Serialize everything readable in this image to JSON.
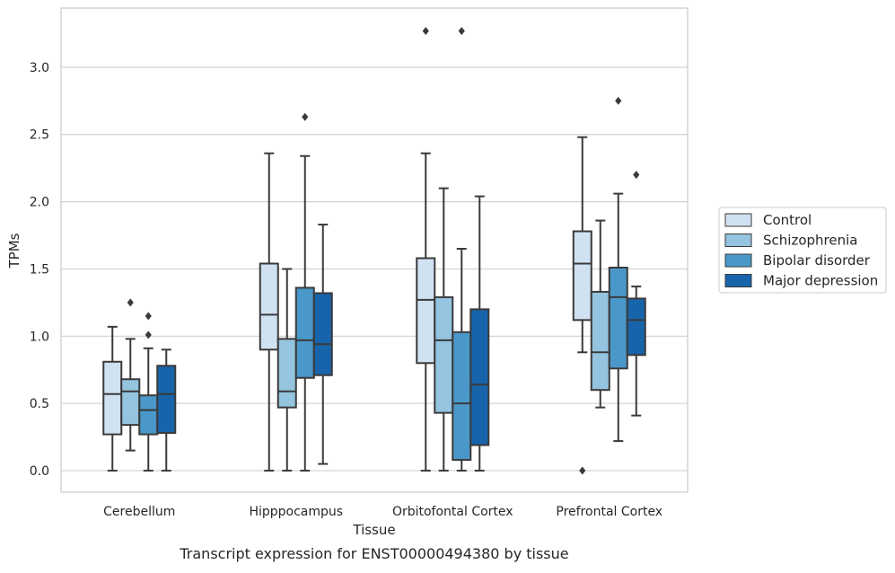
{
  "chart_data": {
    "type": "boxplot",
    "title": "",
    "caption": "Transcript expression for ENST00000494380 by tissue",
    "xlabel": "Tissue",
    "ylabel": "TPMs",
    "ylim": [
      -0.16,
      3.44
    ],
    "yticks": [
      "0.0",
      "0.5",
      "1.0",
      "1.5",
      "2.0",
      "2.5",
      "3.0"
    ],
    "grid": "horizontal",
    "legend_position": "right",
    "categories": [
      "Cerebellum",
      "Hipppocampus",
      "Orbitofontal Cortex",
      "Prefrontal Cortex"
    ],
    "series": [
      {
        "name": "Control",
        "color": "#d0e1f2",
        "boxes": [
          {
            "whisker_low": 0.0,
            "q1": 0.27,
            "median": 0.57,
            "q3": 0.81,
            "whisker_high": 1.07,
            "outliers": []
          },
          {
            "whisker_low": 0.0,
            "q1": 0.9,
            "median": 1.16,
            "q3": 1.54,
            "whisker_high": 2.36,
            "outliers": []
          },
          {
            "whisker_low": 0.0,
            "q1": 0.8,
            "median": 1.27,
            "q3": 1.58,
            "whisker_high": 2.36,
            "outliers": [
              3.27
            ]
          },
          {
            "whisker_low": 0.88,
            "q1": 1.12,
            "median": 1.54,
            "q3": 1.78,
            "whisker_high": 2.48,
            "outliers": [
              0.0
            ]
          }
        ]
      },
      {
        "name": "Schizophrenia",
        "color": "#94c4df",
        "boxes": [
          {
            "whisker_low": 0.15,
            "q1": 0.34,
            "median": 0.59,
            "q3": 0.68,
            "whisker_high": 0.98,
            "outliers": [
              1.25
            ]
          },
          {
            "whisker_low": 0.0,
            "q1": 0.47,
            "median": 0.59,
            "q3": 0.98,
            "whisker_high": 1.5,
            "outliers": []
          },
          {
            "whisker_low": 0.0,
            "q1": 0.43,
            "median": 0.97,
            "q3": 1.29,
            "whisker_high": 2.1,
            "outliers": []
          },
          {
            "whisker_low": 0.47,
            "q1": 0.6,
            "median": 0.88,
            "q3": 1.33,
            "whisker_high": 1.86,
            "outliers": []
          }
        ]
      },
      {
        "name": "Bipolar disorder",
        "color": "#4a98c9",
        "boxes": [
          {
            "whisker_low": 0.0,
            "q1": 0.27,
            "median": 0.45,
            "q3": 0.56,
            "whisker_high": 0.91,
            "outliers": [
              1.01,
              1.15
            ]
          },
          {
            "whisker_low": 0.0,
            "q1": 0.69,
            "median": 0.97,
            "q3": 1.36,
            "whisker_high": 2.34,
            "outliers": [
              2.63
            ]
          },
          {
            "whisker_low": 0.0,
            "q1": 0.08,
            "median": 0.5,
            "q3": 1.03,
            "whisker_high": 1.65,
            "outliers": [
              3.27
            ]
          },
          {
            "whisker_low": 0.22,
            "q1": 0.76,
            "median": 1.29,
            "q3": 1.51,
            "whisker_high": 2.06,
            "outliers": [
              2.75
            ]
          }
        ]
      },
      {
        "name": "Major depression",
        "color": "#1764ab",
        "boxes": [
          {
            "whisker_low": 0.0,
            "q1": 0.28,
            "median": 0.57,
            "q3": 0.78,
            "whisker_high": 0.9,
            "outliers": []
          },
          {
            "whisker_low": 0.05,
            "q1": 0.71,
            "median": 0.94,
            "q3": 1.32,
            "whisker_high": 1.83,
            "outliers": []
          },
          {
            "whisker_low": 0.0,
            "q1": 0.19,
            "median": 0.64,
            "q3": 1.2,
            "whisker_high": 2.04,
            "outliers": []
          },
          {
            "whisker_low": 0.41,
            "q1": 0.86,
            "median": 1.12,
            "q3": 1.28,
            "whisker_high": 1.37,
            "outliers": [
              2.2
            ]
          }
        ]
      }
    ]
  }
}
